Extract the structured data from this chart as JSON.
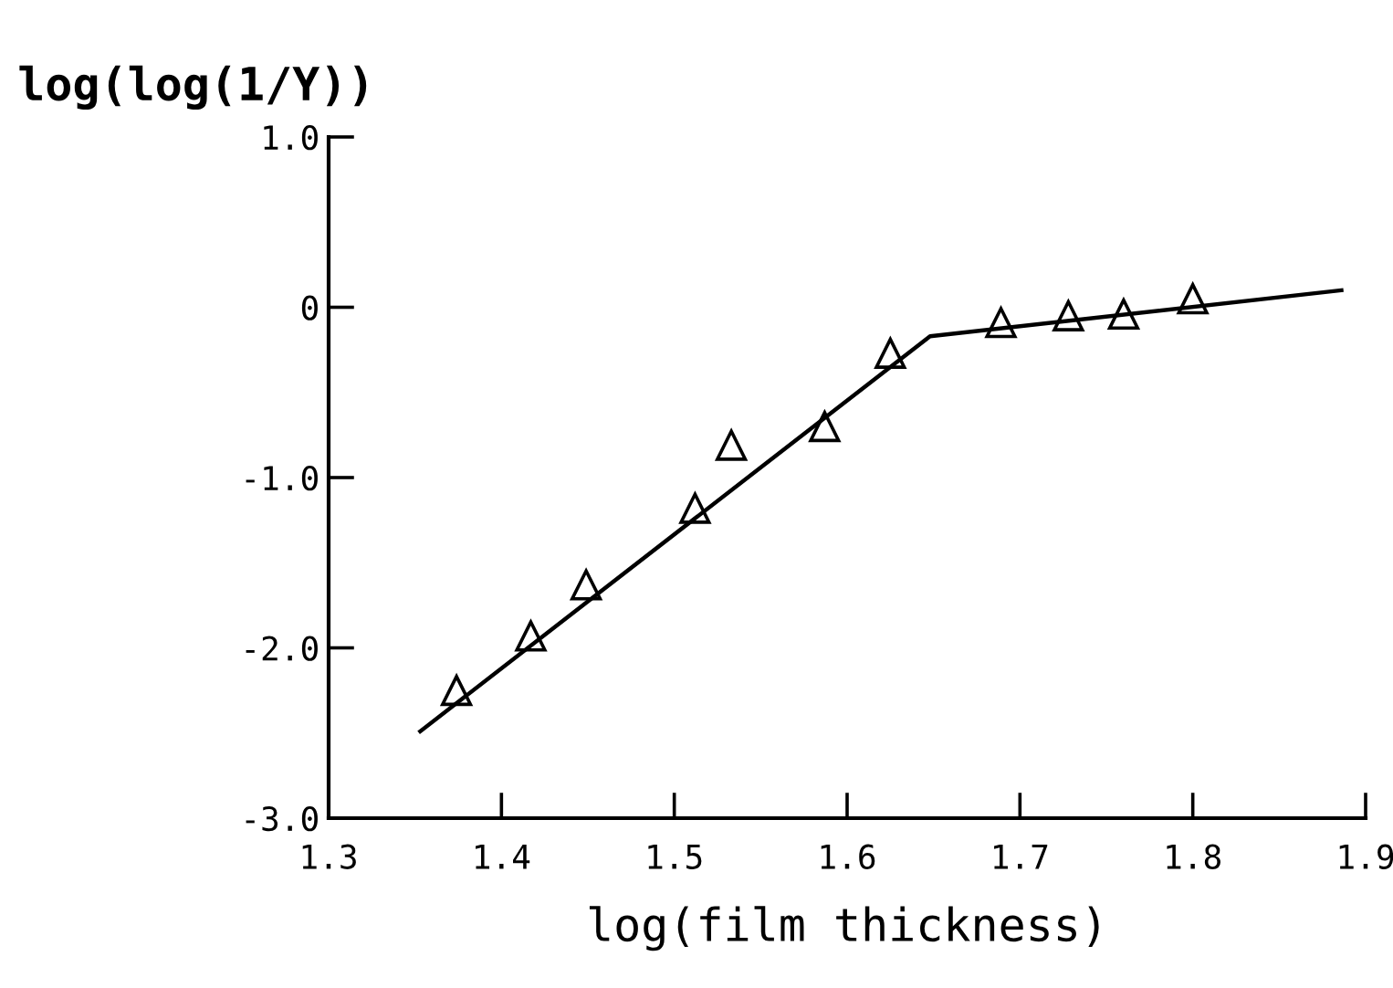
{
  "chart_data": {
    "type": "scatter",
    "ylabel": "log(log(1/Y))",
    "xlabel": "log(film thickness)",
    "xlim": [
      1.3,
      1.9
    ],
    "ylim": [
      -3.0,
      1.0
    ],
    "xticks": [
      1.3,
      1.4,
      1.5,
      1.6,
      1.7,
      1.8,
      1.9
    ],
    "yticks": [
      {
        "value": -3,
        "label": "-3.0"
      },
      {
        "value": -2,
        "label": "-2.0"
      },
      {
        "value": -1,
        "label": "-1.0"
      },
      0,
      {
        "value": 1,
        "label": "1.0"
      }
    ],
    "grid": false,
    "legend": false,
    "series": [
      {
        "marker": "triangle",
        "color": "#000000",
        "x": [
          1.374,
          1.417,
          1.449,
          1.512,
          1.533,
          1.587,
          1.625,
          1.689,
          1.728,
          1.76,
          1.8
        ],
        "values": [
          -2.25,
          -1.93,
          -1.63,
          -1.18,
          -0.81,
          -0.7,
          -0.27,
          -0.09,
          -0.05,
          -0.04,
          0.05
        ]
      },
      {
        "type": "line",
        "marker": "none",
        "line_style": "solid",
        "color": "#000000",
        "x": [
          1.353,
          1.648,
          1.886
        ],
        "values": [
          -2.49,
          -0.17,
          0.1
        ]
      }
    ]
  }
}
